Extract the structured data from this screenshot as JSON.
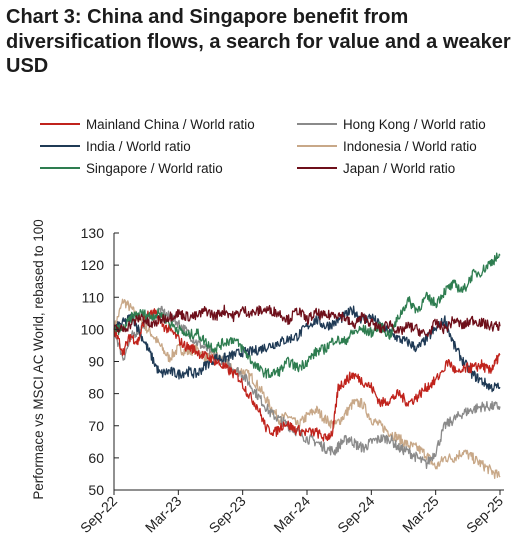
{
  "title": "Chart 3: China and Singapore benefit from diversification flows, a search for value and a weaker USD",
  "chart_data": {
    "type": "line",
    "ylabel": "Performace vs MSCI AC World, rebased to 100",
    "ylim": [
      50,
      130
    ],
    "yticks": [
      50,
      60,
      70,
      80,
      90,
      100,
      110,
      120,
      130
    ],
    "xlabels": [
      "Sep-22",
      "Mar-23",
      "Sep-23",
      "Mar-24",
      "Sep-24",
      "Mar-25",
      "Sep-25"
    ],
    "grid": false,
    "legend_position": "top",
    "series": [
      {
        "name": "Mainland China / World ratio",
        "color": "#c0231c",
        "values": [
          [
            0,
            100
          ],
          [
            0.5,
            93
          ],
          [
            0.9,
            98
          ],
          [
            1.3,
            96
          ],
          [
            1.7,
            104
          ],
          [
            2.2,
            105
          ],
          [
            2.7,
            101
          ],
          [
            3.2,
            99
          ],
          [
            3.8,
            95
          ],
          [
            4.3,
            94
          ],
          [
            4.8,
            92
          ],
          [
            5.3,
            91
          ],
          [
            5.8,
            89
          ],
          [
            6.3,
            87
          ],
          [
            6.8,
            85
          ],
          [
            7.3,
            80
          ],
          [
            7.8,
            76
          ],
          [
            8.3,
            69
          ],
          [
            8.8,
            68
          ],
          [
            9.3,
            71
          ],
          [
            9.8,
            69
          ],
          [
            10.4,
            68
          ],
          [
            11.0,
            68
          ],
          [
            11.5,
            66
          ],
          [
            11.9,
            68
          ],
          [
            12.2,
            82
          ],
          [
            12.6,
            84
          ],
          [
            13.0,
            86
          ],
          [
            13.5,
            84
          ],
          [
            14.0,
            82
          ],
          [
            14.5,
            77
          ],
          [
            15.0,
            78
          ],
          [
            15.5,
            80
          ],
          [
            16.0,
            77
          ],
          [
            16.5,
            79
          ],
          [
            17.0,
            82
          ],
          [
            17.5,
            84
          ],
          [
            18.2,
            90
          ],
          [
            18.7,
            86
          ],
          [
            19.2,
            88
          ],
          [
            19.6,
            88
          ],
          [
            20.0,
            89
          ],
          [
            20.4,
            87
          ],
          [
            20.7,
            89
          ],
          [
            21.0,
            92
          ]
        ]
      },
      {
        "name": "Hong Kong / World ratio",
        "color": "#8a8a8a",
        "values": [
          [
            0,
            100
          ],
          [
            0.5,
            91
          ],
          [
            1.0,
            98
          ],
          [
            1.5,
            101
          ],
          [
            2.0,
            104
          ],
          [
            2.5,
            106
          ],
          [
            3.0,
            104
          ],
          [
            3.5,
            102
          ],
          [
            4.0,
            99
          ],
          [
            4.5,
            96
          ],
          [
            5.0,
            94
          ],
          [
            5.5,
            92
          ],
          [
            6.0,
            90
          ],
          [
            6.5,
            88
          ],
          [
            7.0,
            86
          ],
          [
            7.5,
            82
          ],
          [
            8.0,
            78
          ],
          [
            8.5,
            74
          ],
          [
            9.0,
            72
          ],
          [
            9.5,
            70
          ],
          [
            10.0,
            68
          ],
          [
            10.5,
            66
          ],
          [
            11.0,
            65
          ],
          [
            11.5,
            63
          ],
          [
            12.0,
            62
          ],
          [
            12.4,
            65
          ],
          [
            12.8,
            66
          ],
          [
            13.2,
            64
          ],
          [
            13.6,
            63
          ],
          [
            14.0,
            65
          ],
          [
            14.5,
            66
          ],
          [
            15.0,
            66
          ],
          [
            15.5,
            63
          ],
          [
            16.0,
            62
          ],
          [
            16.5,
            60
          ],
          [
            17.0,
            58
          ],
          [
            17.5,
            62
          ],
          [
            18.0,
            70
          ],
          [
            18.5,
            72
          ],
          [
            19.0,
            74
          ],
          [
            19.5,
            75
          ],
          [
            20.0,
            76
          ],
          [
            20.5,
            76
          ],
          [
            21.0,
            76
          ]
        ]
      },
      {
        "name": "India / World ratio",
        "color": "#1f3a55",
        "values": [
          [
            0,
            100
          ],
          [
            0.5,
            102
          ],
          [
            1.0,
            104
          ],
          [
            1.5,
            98
          ],
          [
            2.0,
            92
          ],
          [
            2.5,
            86
          ],
          [
            3.0,
            87
          ],
          [
            3.5,
            86
          ],
          [
            4.0,
            87
          ],
          [
            4.5,
            86
          ],
          [
            5.0,
            89
          ],
          [
            5.5,
            91
          ],
          [
            6.0,
            91
          ],
          [
            6.5,
            92
          ],
          [
            7.0,
            93
          ],
          [
            7.5,
            93
          ],
          [
            8.0,
            94
          ],
          [
            8.5,
            95
          ],
          [
            9.0,
            96
          ],
          [
            9.5,
            97
          ],
          [
            10.0,
            98
          ],
          [
            10.5,
            101
          ],
          [
            11.0,
            103
          ],
          [
            11.5,
            101
          ],
          [
            12.0,
            102
          ],
          [
            12.5,
            104
          ],
          [
            13.0,
            106
          ],
          [
            13.5,
            103
          ],
          [
            14.0,
            104
          ],
          [
            14.5,
            101
          ],
          [
            15.0,
            99
          ],
          [
            15.5,
            97
          ],
          [
            16.0,
            96
          ],
          [
            16.5,
            94
          ],
          [
            17.0,
            97
          ],
          [
            17.5,
            100
          ],
          [
            18.0,
            103
          ],
          [
            18.5,
            95
          ],
          [
            19.0,
            90
          ],
          [
            19.5,
            86
          ],
          [
            20.0,
            84
          ],
          [
            20.5,
            82
          ],
          [
            21.0,
            82
          ]
        ]
      },
      {
        "name": "Indonesia / World ratio",
        "color": "#c8a888",
        "values": [
          [
            0,
            100
          ],
          [
            0.5,
            109
          ],
          [
            1.0,
            106
          ],
          [
            1.5,
            102
          ],
          [
            2.0,
            99
          ],
          [
            2.5,
            95
          ],
          [
            3.0,
            91
          ],
          [
            3.5,
            94
          ],
          [
            4.0,
            93
          ],
          [
            4.5,
            94
          ],
          [
            5.0,
            91
          ],
          [
            5.5,
            92
          ],
          [
            6.0,
            90
          ],
          [
            6.5,
            87
          ],
          [
            7.0,
            87
          ],
          [
            7.5,
            85
          ],
          [
            8.0,
            81
          ],
          [
            8.5,
            76
          ],
          [
            9.0,
            72
          ],
          [
            9.5,
            73
          ],
          [
            10.0,
            70
          ],
          [
            10.5,
            73
          ],
          [
            11.0,
            75
          ],
          [
            11.5,
            72
          ],
          [
            12.0,
            70
          ],
          [
            12.5,
            73
          ],
          [
            13.0,
            77
          ],
          [
            13.5,
            77
          ],
          [
            14.0,
            72
          ],
          [
            14.5,
            70
          ],
          [
            15.0,
            68
          ],
          [
            15.5,
            66
          ],
          [
            16.0,
            64
          ],
          [
            16.5,
            63
          ],
          [
            17.0,
            61
          ],
          [
            17.5,
            57
          ],
          [
            18.0,
            60
          ],
          [
            18.5,
            60
          ],
          [
            19.0,
            62
          ],
          [
            19.5,
            60
          ],
          [
            20.0,
            58
          ],
          [
            20.5,
            56
          ],
          [
            21.0,
            54
          ]
        ]
      },
      {
        "name": "Singapore / World ratio",
        "color": "#2e7d50",
        "values": [
          [
            0,
            100
          ],
          [
            0.5,
            100
          ],
          [
            1.0,
            104
          ],
          [
            1.5,
            105
          ],
          [
            2.0,
            104
          ],
          [
            2.5,
            105
          ],
          [
            3.0,
            102
          ],
          [
            3.5,
            100
          ],
          [
            4.0,
            98
          ],
          [
            4.5,
            99
          ],
          [
            5.0,
            96
          ],
          [
            5.5,
            94
          ],
          [
            6.0,
            96
          ],
          [
            6.5,
            97
          ],
          [
            7.0,
            94
          ],
          [
            7.5,
            90
          ],
          [
            8.0,
            87
          ],
          [
            8.5,
            86
          ],
          [
            9.0,
            87
          ],
          [
            9.5,
            90
          ],
          [
            10.0,
            88
          ],
          [
            10.5,
            90
          ],
          [
            11.0,
            93
          ],
          [
            11.5,
            94
          ],
          [
            12.0,
            97
          ],
          [
            12.5,
            96
          ],
          [
            13.0,
            99
          ],
          [
            13.5,
            100
          ],
          [
            14.0,
            99
          ],
          [
            14.5,
            101
          ],
          [
            15.0,
            98
          ],
          [
            15.5,
            104
          ],
          [
            16.0,
            109
          ],
          [
            16.5,
            106
          ],
          [
            17.0,
            110
          ],
          [
            17.5,
            108
          ],
          [
            18.0,
            112
          ],
          [
            18.5,
            114
          ],
          [
            19.0,
            112
          ],
          [
            19.5,
            117
          ],
          [
            20.0,
            118
          ],
          [
            20.5,
            121
          ],
          [
            21.0,
            123
          ]
        ]
      },
      {
        "name": "Japan / World ratio",
        "color": "#6e0f1a",
        "values": [
          [
            0,
            100
          ],
          [
            0.5,
            100
          ],
          [
            1.0,
            102
          ],
          [
            1.5,
            104
          ],
          [
            2.0,
            101
          ],
          [
            2.5,
            103
          ],
          [
            3.0,
            104
          ],
          [
            3.5,
            105
          ],
          [
            4.0,
            104
          ],
          [
            4.5,
            104
          ],
          [
            5.0,
            106
          ],
          [
            5.5,
            104
          ],
          [
            6.0,
            106
          ],
          [
            6.5,
            104
          ],
          [
            7.0,
            106
          ],
          [
            7.5,
            105
          ],
          [
            8.0,
            106
          ],
          [
            8.5,
            106
          ],
          [
            9.0,
            105
          ],
          [
            9.5,
            103
          ],
          [
            10.0,
            106
          ],
          [
            10.5,
            103
          ],
          [
            11.0,
            105
          ],
          [
            11.5,
            104
          ],
          [
            12.0,
            105
          ],
          [
            12.5,
            104
          ],
          [
            13.0,
            101
          ],
          [
            13.5,
            104
          ],
          [
            14.0,
            102
          ],
          [
            14.5,
            100
          ],
          [
            15.0,
            102
          ],
          [
            15.5,
            99
          ],
          [
            16.0,
            101
          ],
          [
            16.5,
            100
          ],
          [
            17.0,
            98
          ],
          [
            17.5,
            102
          ],
          [
            18.0,
            100
          ],
          [
            18.5,
            103
          ],
          [
            19.0,
            101
          ],
          [
            19.5,
            103
          ],
          [
            20.0,
            102
          ],
          [
            20.5,
            101
          ],
          [
            21.0,
            101
          ]
        ]
      }
    ]
  }
}
